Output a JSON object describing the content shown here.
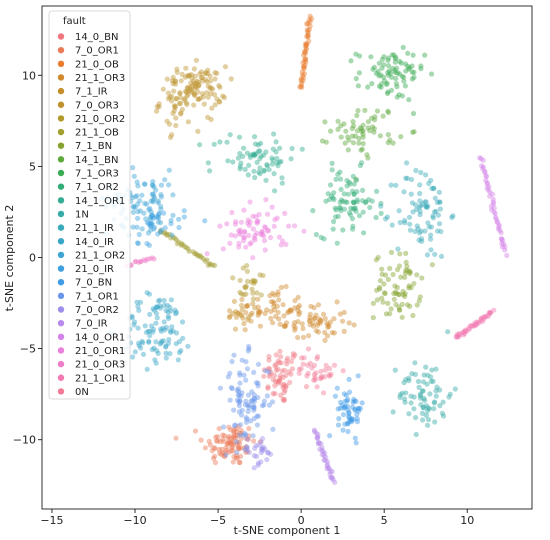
{
  "chart_data": {
    "type": "scatter",
    "title": "",
    "xlabel": "t-SNE component 1",
    "ylabel": "t-SNE component 2",
    "xlim": [
      -15.6,
      13.9
    ],
    "ylim": [
      -13.8,
      13.8
    ],
    "xticks": [
      -15,
      -10,
      -5,
      0,
      5,
      10
    ],
    "yticks": [
      -10,
      -5,
      0,
      5,
      10
    ],
    "grid": false,
    "legend": {
      "title": "fault",
      "placement": "top-left"
    },
    "point_alpha": 0.45,
    "series": [
      {
        "name": "14_0_BN",
        "color": "#f0767f",
        "clusters": [
          {
            "cx": -1.2,
            "cy": -6.5,
            "sx": 0.55,
            "sy": 0.8,
            "n": 60
          }
        ]
      },
      {
        "name": "7_0_OR1",
        "color": "#ea7a58",
        "clusters": [
          {
            "cx": -4.3,
            "cy": -10.2,
            "sx": 0.8,
            "sy": 0.6,
            "n": 90
          }
        ]
      },
      {
        "name": "21_0_OB",
        "color": "#e97c2e",
        "curves": [
          {
            "from": [
              0.0,
              9.3
            ],
            "to": [
              0.55,
              13.2
            ],
            "n": 45
          }
        ]
      },
      {
        "name": "21_1_OR3",
        "color": "#d0892e",
        "clusters": [
          {
            "cx": -1.8,
            "cy": -2.8,
            "sx": 1.0,
            "sy": 0.5,
            "n": 50
          },
          {
            "cx": 0.8,
            "cy": -3.6,
            "sx": 1.0,
            "sy": 0.5,
            "n": 60
          }
        ]
      },
      {
        "name": "7_1_IR",
        "color": "#c5902a",
        "clusters": [
          {
            "cx": -3.5,
            "cy": -3.0,
            "sx": 0.6,
            "sy": 0.4,
            "n": 20
          }
        ]
      },
      {
        "name": "7_0_OR3",
        "color": "#bf9430",
        "clusters": [
          {
            "cx": -6.2,
            "cy": 9.3,
            "sx": 0.85,
            "sy": 0.6,
            "n": 80
          },
          {
            "cx": -7.3,
            "cy": 8.6,
            "sx": 0.6,
            "sy": 0.8,
            "n": 50
          }
        ]
      },
      {
        "name": "21_0_OR2",
        "color": "#b29a2e",
        "clusters": [
          {
            "cx": -3.0,
            "cy": -1.5,
            "sx": 0.7,
            "sy": 0.5,
            "n": 25
          }
        ]
      },
      {
        "name": "21_1_OB",
        "color": "#a29e30",
        "curves": [
          {
            "from": [
              -8.5,
              1.5
            ],
            "to": [
              -5.2,
              -0.5
            ],
            "n": 35
          }
        ]
      },
      {
        "name": "7_1_BN",
        "color": "#86a330",
        "clusters": [
          {
            "cx": 5.8,
            "cy": -1.6,
            "sx": 0.7,
            "sy": 0.9,
            "n": 70
          }
        ]
      },
      {
        "name": "14_1_BN",
        "color": "#5ea83c",
        "clusters": [
          {
            "cx": 3.8,
            "cy": 7.0,
            "sx": 1.0,
            "sy": 0.7,
            "n": 60
          }
        ]
      },
      {
        "name": "7_1_OR3",
        "color": "#39ab52",
        "clusters": [
          {
            "cx": 5.4,
            "cy": 10.0,
            "sx": 1.0,
            "sy": 0.7,
            "n": 80
          }
        ]
      },
      {
        "name": "7_1_OR2",
        "color": "#33ad77",
        "clusters": [
          {
            "cx": 2.8,
            "cy": 3.0,
            "sx": 0.9,
            "sy": 0.9,
            "n": 80
          }
        ]
      },
      {
        "name": "14_1_OR1",
        "color": "#34ad92",
        "clusters": [
          {
            "cx": -2.8,
            "cy": 5.5,
            "sx": 1.3,
            "sy": 0.7,
            "n": 70
          }
        ]
      },
      {
        "name": "1N",
        "color": "#35aba7",
        "clusters": [
          {
            "cx": 7.5,
            "cy": -7.5,
            "sx": 0.8,
            "sy": 1.0,
            "n": 70
          }
        ]
      },
      {
        "name": "21_1_IR",
        "color": "#38a9b8",
        "clusters": [
          {
            "cx": 7.3,
            "cy": 2.5,
            "sx": 0.8,
            "sy": 1.3,
            "n": 80
          }
        ]
      },
      {
        "name": "14_0_IR",
        "color": "#3aa6c7",
        "clusters": [
          {
            "cx": -8.6,
            "cy": -4.0,
            "sx": 1.1,
            "sy": 1.0,
            "n": 100
          }
        ]
      },
      {
        "name": "21_1_OR2",
        "color": "#3da4d4",
        "clusters": [
          {
            "cx": -9.5,
            "cy": 3.2,
            "sx": 1.1,
            "sy": 0.8,
            "n": 80
          }
        ]
      },
      {
        "name": "21_0_IR",
        "color": "#3ea1df",
        "clusters": [
          {
            "cx": -9.0,
            "cy": 1.8,
            "sx": 1.0,
            "sy": 0.5,
            "n": 40
          }
        ]
      },
      {
        "name": "7_0_BN",
        "color": "#3f9ae7",
        "clusters": [
          {
            "cx": 3.0,
            "cy": -8.3,
            "sx": 0.4,
            "sy": 0.7,
            "n": 55
          }
        ]
      },
      {
        "name": "7_1_OR1",
        "color": "#6a96ea",
        "clusters": [
          {
            "cx": -3.3,
            "cy": -7.9,
            "sx": 0.7,
            "sy": 1.2,
            "n": 90
          }
        ]
      },
      {
        "name": "7_0_OR2",
        "color": "#9c8fea",
        "clusters": [
          {
            "cx": -2.6,
            "cy": -10.6,
            "sx": 0.5,
            "sy": 0.4,
            "n": 25
          }
        ]
      },
      {
        "name": "7_0_IR",
        "color": "#b889ec",
        "curves": [
          {
            "from": [
              0.8,
              -9.5
            ],
            "to": [
              2.0,
              -12.3
            ],
            "n": 35
          }
        ]
      },
      {
        "name": "14_0_OR1",
        "color": "#d483e9",
        "curves": [
          {
            "from": [
              10.8,
              5.5
            ],
            "to": [
              12.3,
              0.2
            ],
            "n": 45
          }
        ]
      },
      {
        "name": "21_0_OR1",
        "color": "#ea7fdc",
        "clusters": [
          {
            "cx": -2.7,
            "cy": 1.5,
            "sx": 1.0,
            "sy": 0.7,
            "n": 70
          }
        ]
      },
      {
        "name": "21_0_OR3",
        "color": "#ef7cc8",
        "curves": [
          {
            "from": [
              -10.5,
              -0.5
            ],
            "to": [
              -8.9,
              0.0
            ],
            "n": 15
          }
        ]
      },
      {
        "name": "21_1_OR1",
        "color": "#f279b1",
        "curves": [
          {
            "from": [
              9.3,
              -4.4
            ],
            "to": [
              11.5,
              -3.0
            ],
            "n": 40
          }
        ]
      },
      {
        "name": "0N",
        "color": "#f27a96",
        "clusters": [
          {
            "cx": 1.0,
            "cy": -6.2,
            "sx": 0.6,
            "sy": 0.5,
            "n": 35
          }
        ]
      }
    ]
  }
}
